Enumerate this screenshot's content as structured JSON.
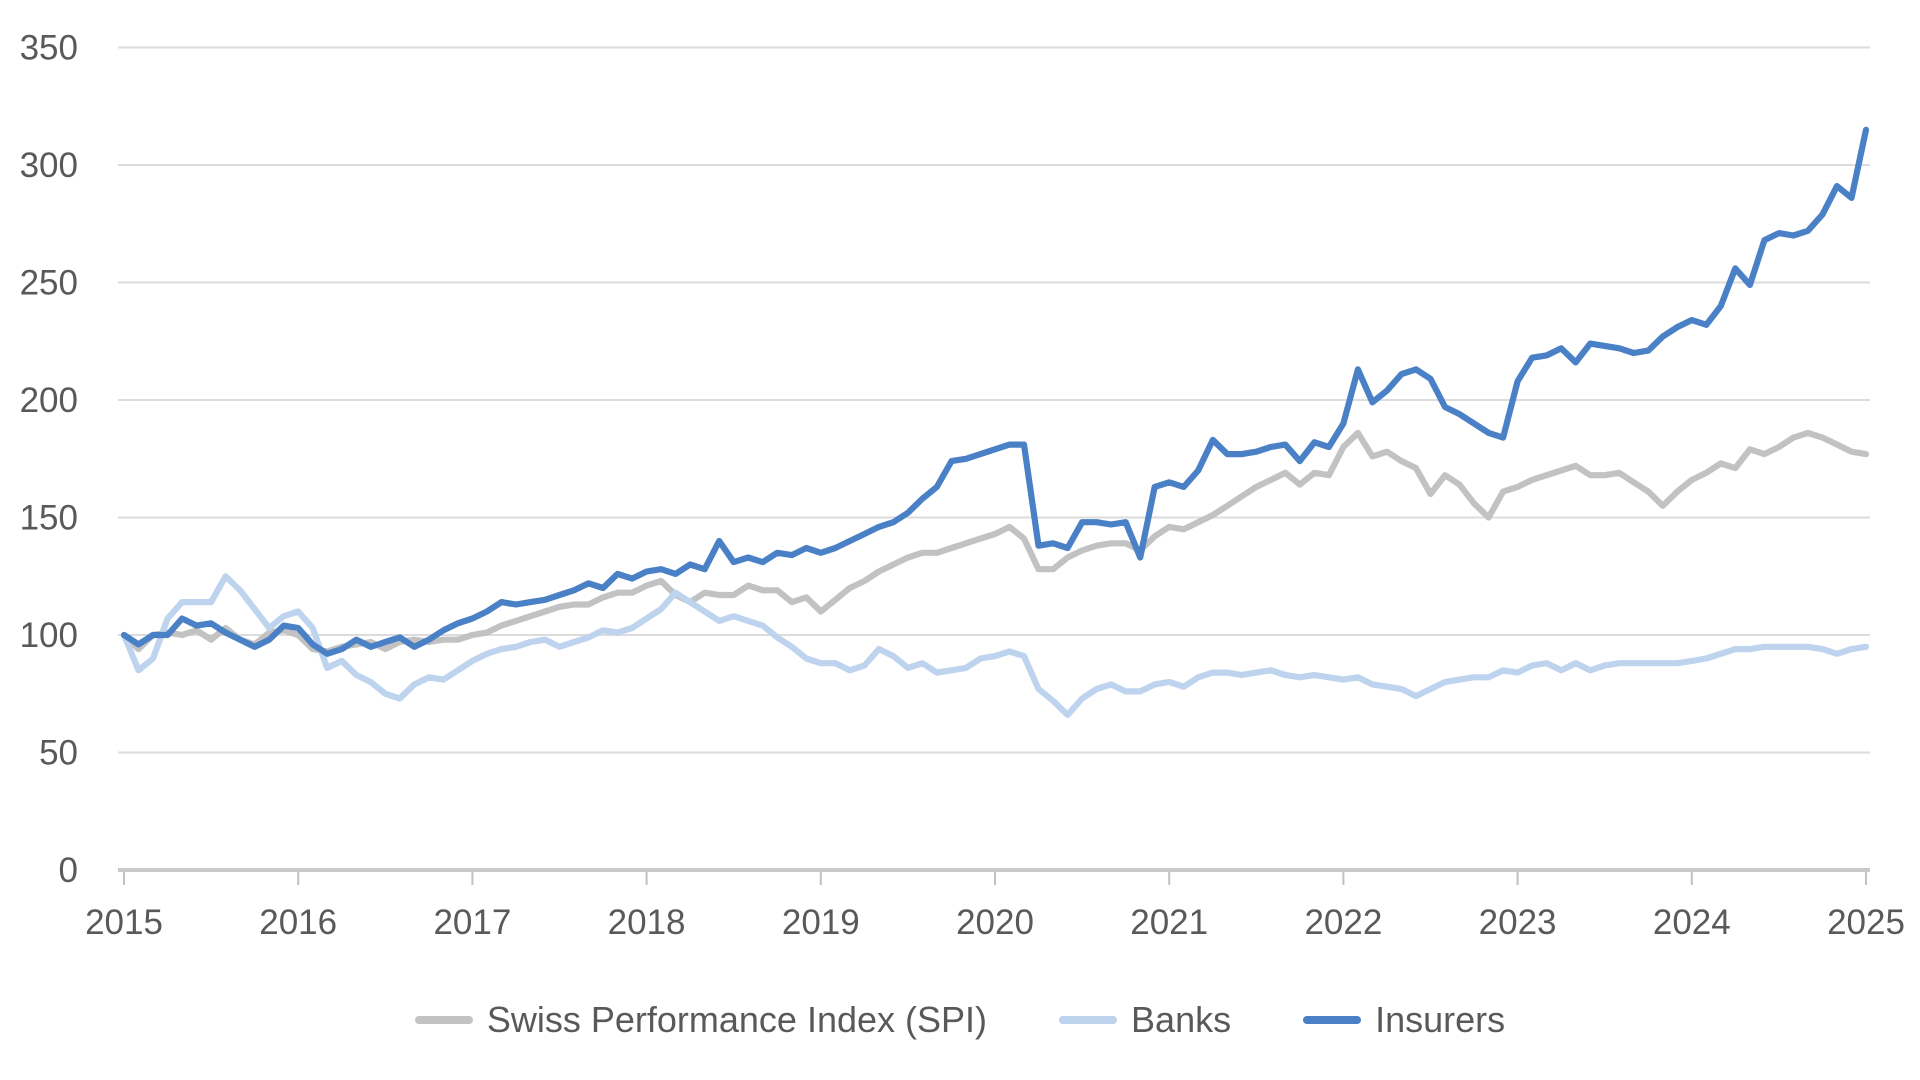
{
  "chart_data": {
    "type": "line",
    "title": "",
    "xlabel": "",
    "ylabel": "",
    "x_start_year": 2015,
    "x_end_year": 2025,
    "x_tick_labels": [
      "2015",
      "2016",
      "2017",
      "2018",
      "2019",
      "2020",
      "2021",
      "2022",
      "2023",
      "2024",
      "2025"
    ],
    "points_per_year": 12,
    "ylim": [
      0,
      350
    ],
    "y_ticks": [
      0,
      50,
      100,
      150,
      200,
      250,
      300,
      350
    ],
    "grid": true,
    "legend_position": "bottom",
    "colors": {
      "grid": "#dcdcdc",
      "axis_line": "#c9c9c9",
      "tick_mark": "#c2c2c2",
      "label_text": "#595959",
      "background": "#ffffff"
    },
    "series": [
      {
        "name": "Swiss Performance Index (SPI)",
        "color": "#c2c2c2",
        "values": [
          100,
          94,
          100,
          101,
          100,
          102,
          98,
          103,
          98,
          96,
          101,
          102,
          100,
          94,
          93,
          95,
          96,
          97,
          94,
          97,
          98,
          97,
          98,
          98,
          100,
          101,
          104,
          106,
          108,
          110,
          112,
          113,
          113,
          116,
          118,
          118,
          121,
          123,
          117,
          114,
          118,
          117,
          117,
          121,
          119,
          119,
          114,
          116,
          110,
          115,
          120,
          123,
          127,
          130,
          133,
          135,
          135,
          137,
          139,
          141,
          143,
          146,
          141,
          128,
          128,
          133,
          136,
          138,
          139,
          139,
          136,
          142,
          146,
          145,
          148,
          151,
          155,
          159,
          163,
          166,
          169,
          164,
          169,
          168,
          180,
          186,
          176,
          178,
          174,
          171,
          160,
          168,
          164,
          156,
          150,
          161,
          163,
          166,
          168,
          170,
          172,
          168,
          168,
          169,
          165,
          161,
          155,
          161,
          166,
          169,
          173,
          171,
          179,
          177,
          180,
          184,
          186,
          184,
          181,
          178,
          177
        ]
      },
      {
        "name": "Banks",
        "color": "#bdd3ee",
        "values": [
          100,
          85,
          90,
          107,
          114,
          114,
          114,
          125,
          119,
          111,
          103,
          108,
          110,
          103,
          86,
          89,
          83,
          80,
          75,
          73,
          79,
          82,
          81,
          85,
          89,
          92,
          94,
          95,
          97,
          98,
          95,
          97,
          99,
          102,
          101,
          103,
          107,
          111,
          118,
          114,
          110,
          106,
          108,
          106,
          104,
          99,
          95,
          90,
          88,
          88,
          85,
          87,
          94,
          91,
          86,
          88,
          84,
          85,
          86,
          90,
          91,
          93,
          91,
          77,
          72,
          66,
          73,
          77,
          79,
          76,
          76,
          79,
          80,
          78,
          82,
          84,
          84,
          83,
          84,
          85,
          83,
          82,
          83,
          82,
          81,
          82,
          79,
          78,
          77,
          74,
          77,
          80,
          81,
          82,
          82,
          85,
          84,
          87,
          88,
          85,
          88,
          85,
          87,
          88,
          88,
          88,
          88,
          88,
          89,
          90,
          92,
          94,
          94,
          95,
          95,
          95,
          95,
          94,
          92,
          94,
          95
        ]
      },
      {
        "name": "Insurers",
        "color": "#4a80c5",
        "values": [
          100,
          96,
          100,
          100,
          107,
          104,
          105,
          101,
          98,
          95,
          98,
          104,
          103,
          96,
          92,
          94,
          98,
          95,
          97,
          99,
          95,
          98,
          102,
          105,
          107,
          110,
          114,
          113,
          114,
          115,
          117,
          119,
          122,
          120,
          126,
          124,
          127,
          128,
          126,
          130,
          128,
          140,
          131,
          133,
          131,
          135,
          134,
          137,
          135,
          137,
          140,
          143,
          146,
          148,
          152,
          158,
          163,
          174,
          175,
          177,
          179,
          181,
          181,
          138,
          139,
          137,
          148,
          148,
          147,
          148,
          133,
          163,
          165,
          163,
          170,
          183,
          177,
          177,
          178,
          180,
          181,
          174,
          182,
          180,
          190,
          213,
          199,
          204,
          211,
          213,
          209,
          197,
          194,
          190,
          186,
          184,
          208,
          218,
          219,
          222,
          216,
          224,
          223,
          222,
          220,
          221,
          227,
          231,
          234,
          232,
          240,
          256,
          249,
          268,
          271,
          270,
          272,
          279,
          291,
          286,
          315
        ]
      }
    ],
    "legend": [
      "Swiss Performance Index (SPI)",
      "Banks",
      "Insurers"
    ]
  }
}
